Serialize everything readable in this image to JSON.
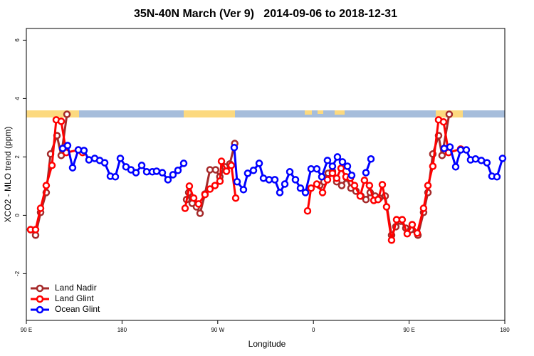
{
  "chart_data": {
    "type": "line",
    "title": "35N-40N March (Ver 9)   2014-09-06 to 2018-12-31",
    "xlabel": "Longitude",
    "ylabel": "XCO2 - MLO trend (ppm)",
    "xlim": [
      90,
      540
    ],
    "ylim": [
      -3.6,
      6.4
    ],
    "xticks": [
      {
        "value": 90,
        "label": "90 E"
      },
      180,
      {
        "value": 270,
        "label": "90 W"
      },
      {
        "value": 360,
        "label": "0"
      },
      {
        "value": 450,
        "label": "90 E"
      },
      {
        "value": 540,
        "label": "180"
      }
    ],
    "yticks": [
      -2,
      0,
      2,
      4,
      6
    ],
    "legend": "bottom-left",
    "series": [
      {
        "name": "Land Nadir",
        "color": "#a52a2a",
        "x": [
          94,
          98.7,
          103.4,
          108.7,
          112.8,
          118.8,
          122.8,
          128.2,
          null,
          240.7,
          242.7,
          246,
          250,
          253.4,
          258,
          262.7,
          268,
          272,
          276.7,
          281.4,
          286,
          null,
          365.9,
          369.9,
          373.9,
          377.9,
          381.9,
          386.6,
          391.3,
          395.3,
          400,
          404.7,
          409.4,
          413.4,
          418.1,
          422.1,
          427.5,
          433.5,
          437.5,
          442.2,
          446.9,
          451.6,
          458.3,
          463.6,
          467.7,
          472.3,
          477.7,
          481,
          487.7
        ],
        "values": [
          -0.49,
          -0.68,
          0.1,
          0.78,
          2.1,
          2.73,
          2.05,
          3.46,
          null,
          0.54,
          0.78,
          0.41,
          0.29,
          0.07,
          0.73,
          1.56,
          1.56,
          1.32,
          1.66,
          1.76,
          2.46,
          null,
          1.02,
          1.15,
          1.44,
          1.51,
          1.15,
          1.02,
          1.27,
          0.93,
          0.83,
          0.66,
          0.54,
          0.78,
          0.66,
          0.59,
          0.66,
          -0.68,
          -0.39,
          -0.2,
          -0.44,
          -0.49,
          -0.68,
          0.1,
          0.78,
          2.1,
          2.73,
          2.05,
          3.46
        ]
      },
      {
        "name": "Land Glint",
        "color": "#ff0000",
        "x": [
          94,
          98.7,
          103.4,
          108.7,
          114.1,
          118.1,
          122.8,
          127.5,
          138.9,
          142.9,
          null,
          239.3,
          243.3,
          247.4,
          252,
          258,
          262.7,
          267.4,
          272.1,
          273.5,
          278.2,
          282.8,
          286.9,
          null,
          354.5,
          357.8,
          363.2,
          368.6,
          373.2,
          377.9,
          381.9,
          386,
          390.6,
          394.7,
          398.7,
          404,
          408,
          412.7,
          416.8,
          420.8,
          424.8,
          428.8,
          433.5,
          438.2,
          443.5,
          448.2,
          452.9,
          457.6,
          463.6,
          467.7,
          472.3,
          477.7,
          482.4,
          487.1,
          498.5
        ],
        "values": [
          -0.49,
          -0.49,
          0.24,
          1.02,
          1.71,
          3.27,
          3.22,
          2.15,
          2.24,
          2.15,
          null,
          0.24,
          1.0,
          0.59,
          0.39,
          0.71,
          0.9,
          1.02,
          1.17,
          1.85,
          1.51,
          1.71,
          0.59,
          null,
          0.15,
          0.93,
          1.07,
          0.78,
          1.22,
          1.44,
          1.27,
          1.61,
          1.32,
          1.27,
          1.02,
          0.66,
          1.2,
          1.02,
          0.51,
          0.54,
          1.05,
          0.29,
          -0.85,
          -0.15,
          -0.15,
          -0.63,
          -0.32,
          -0.61,
          0.24,
          1.02,
          1.68,
          3.27,
          3.2,
          2.15,
          2.27
        ]
      },
      {
        "name": "Ocean Glint",
        "color": "#0000ff",
        "x": [
          124.2,
          128.8,
          133.5,
          138.9,
          144.2,
          148.9,
          154.3,
          159,
          163.7,
          169,
          173.7,
          178.4,
          183.7,
          188.4,
          193.1,
          198.5,
          203.2,
          208.5,
          212.5,
          217.9,
          223.2,
          227.9,
          232.6,
          238,
          null,
          285.5,
          288.2,
          294.2,
          298.2,
          303.6,
          309,
          313,
          318.3,
          323.7,
          328.4,
          333.1,
          337.8,
          343.1,
          347.8,
          352.5,
          357.8,
          363.2,
          367.9,
          373.2,
          377.9,
          382.6,
          387.3,
          392,
          396,
          null,
          409.4,
          414.1,
          null,
          483,
          488.4,
          493.8,
          498.5,
          503.8,
          507.8,
          512.5,
          517.9,
          523.2,
          527.9,
          532.6,
          537.9
        ],
        "values": [
          2.29,
          2.39,
          1.63,
          2.24,
          2.22,
          1.9,
          1.95,
          1.88,
          1.8,
          1.34,
          1.32,
          1.95,
          1.66,
          1.56,
          1.46,
          1.71,
          1.49,
          1.49,
          1.51,
          1.46,
          1.22,
          1.39,
          1.54,
          1.78,
          null,
          2.32,
          1.15,
          0.88,
          1.44,
          1.54,
          1.78,
          1.27,
          1.22,
          1.22,
          0.78,
          1.07,
          1.49,
          1.22,
          0.93,
          0.78,
          1.59,
          1.59,
          1.32,
          1.88,
          1.68,
          2.0,
          1.83,
          1.68,
          1.37,
          null,
          1.46,
          1.93,
          null,
          2.29,
          2.34,
          1.66,
          2.24,
          2.24,
          1.9,
          1.93,
          1.88,
          1.8,
          1.34,
          1.32,
          1.95
        ]
      }
    ]
  }
}
